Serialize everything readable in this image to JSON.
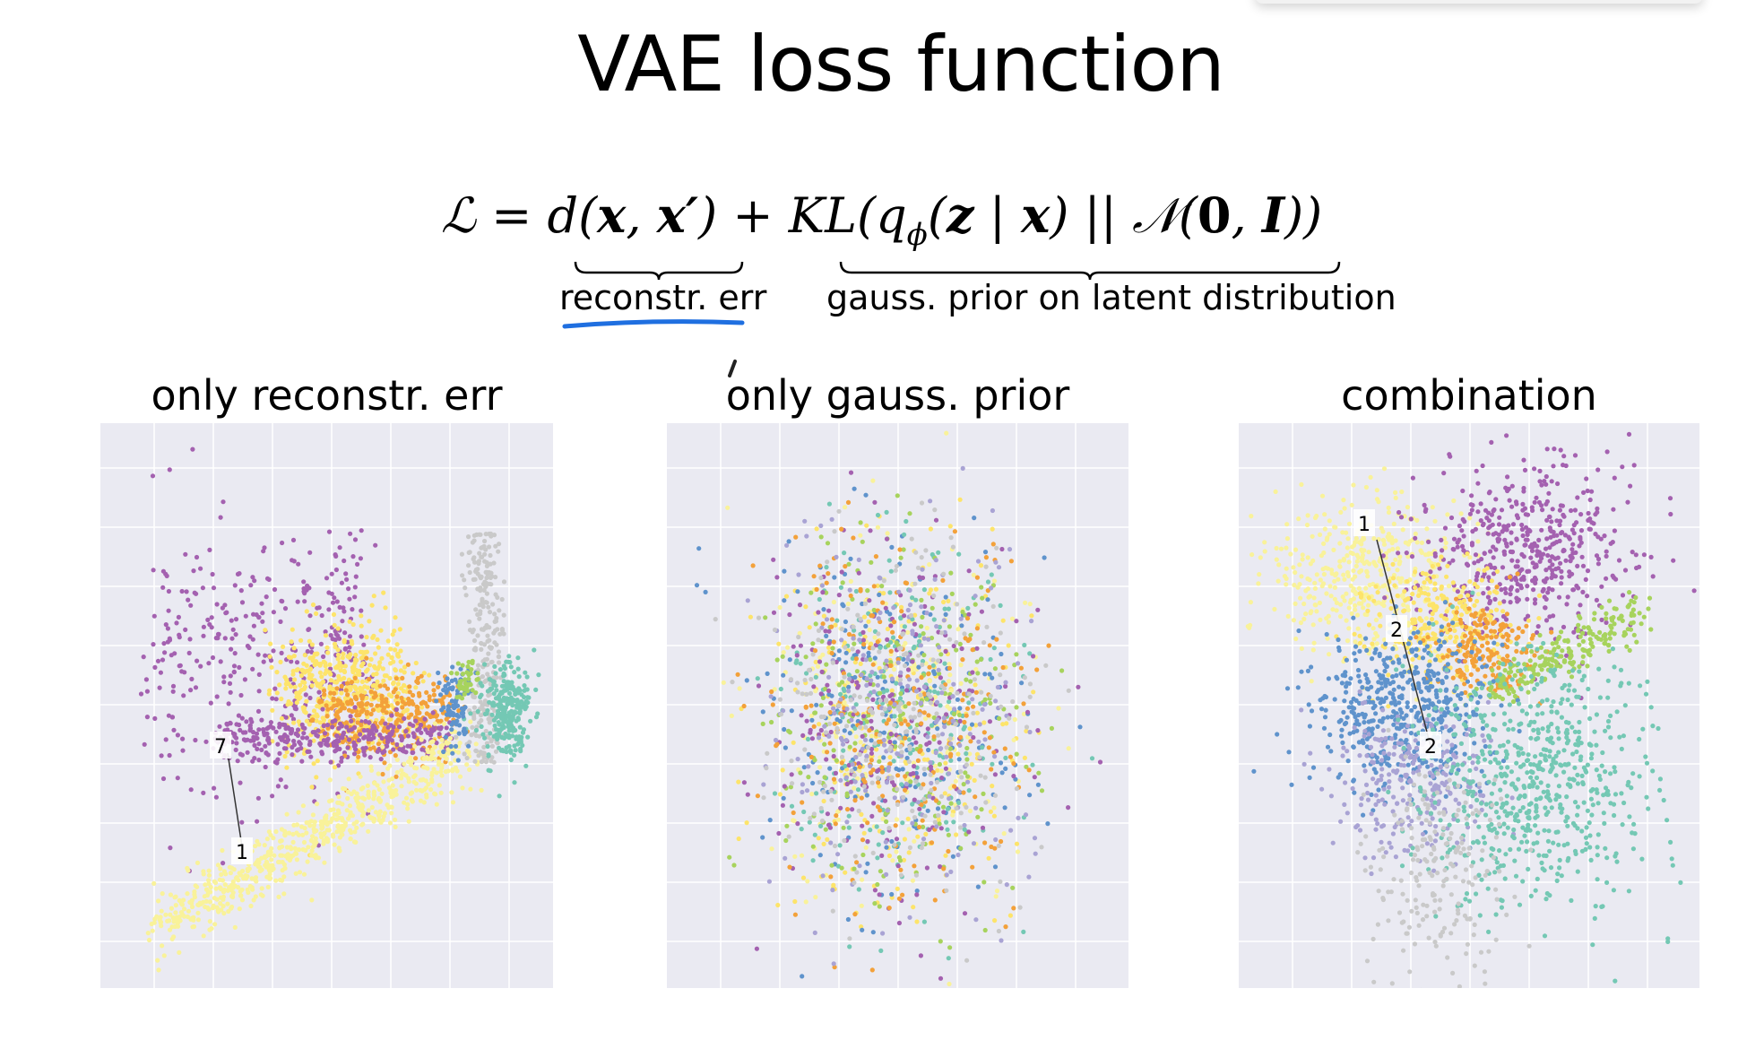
{
  "slide": {
    "title": "VAE loss function"
  },
  "formula": {
    "loss_symbol": "ℒ",
    "equals": "=",
    "term1": "d(x, x′)",
    "plus": "+",
    "term2": "KL(qϕ(z | x) || 𝒩(0, I))",
    "label1": "reconstr. err",
    "label2": "gauss. prior on latent distribution"
  },
  "panels": [
    {
      "title": "only reconstr. err",
      "annotations": [
        "7",
        "?",
        "1"
      ]
    },
    {
      "title": "only gauss. prior",
      "annotations": []
    },
    {
      "title": "combination",
      "annotations": [
        "1",
        "2",
        "2"
      ]
    }
  ],
  "colors": {
    "panel_background": "#eaeaf2",
    "purple": "#a461b0",
    "orange": "#f3a13a",
    "yellow": "#fde46a",
    "pale_yellow": "#f9f29a",
    "light_gray": "#c9c9c9",
    "teal": "#74c8b4",
    "blue": "#5f93cc",
    "lime": "#a7d35d",
    "lavender": "#a9a3d4",
    "highlight_blue": "#1f6fe0"
  }
}
